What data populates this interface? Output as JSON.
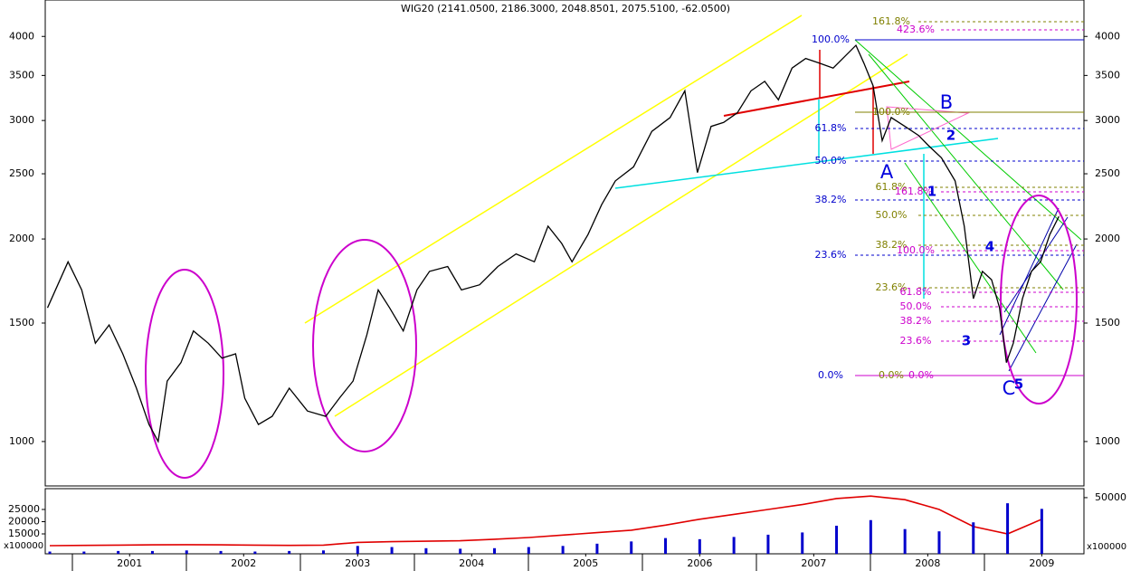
{
  "chart_data": [
    {
      "type": "line",
      "title": "WIG20 (2141.0500, 2186.3000, 2048.8501, 2075.5100, -62.0500)",
      "log_scale": true,
      "x": [
        2000.78,
        2000.96,
        2001.08,
        2001.2,
        2001.32,
        2001.44,
        2001.56,
        2001.67,
        2001.75,
        2001.83,
        2001.95,
        2002.06,
        2002.19,
        2002.31,
        2002.43,
        2002.51,
        2002.63,
        2002.75,
        2002.9,
        2003.06,
        2003.22,
        2003.34,
        2003.46,
        2003.58,
        2003.68,
        2003.78,
        2003.9,
        2004.02,
        2004.13,
        2004.29,
        2004.41,
        2004.57,
        2004.73,
        2004.89,
        2005.05,
        2005.17,
        2005.29,
        2005.38,
        2005.52,
        2005.64,
        2005.76,
        2005.92,
        2006.08,
        2006.24,
        2006.37,
        2006.48,
        2006.6,
        2006.71,
        2006.83,
        2006.95,
        2007.07,
        2007.19,
        2007.31,
        2007.43,
        2007.55,
        2007.67,
        2007.79,
        2007.87,
        2007.94,
        2008.02,
        2008.1,
        2008.18,
        2008.3,
        2008.42,
        2008.5,
        2008.62,
        2008.74,
        2008.82,
        2008.9,
        2008.98,
        2009.06,
        2009.13,
        2009.19,
        2009.25,
        2009.33,
        2009.41,
        2009.49,
        2009.57,
        2009.65
      ],
      "series": [
        {
          "color": "#000000",
          "values": [
            1580,
            1850,
            1680,
            1400,
            1490,
            1350,
            1200,
            1060,
            1000,
            1230,
            1310,
            1460,
            1400,
            1330,
            1350,
            1160,
            1060,
            1090,
            1200,
            1110,
            1090,
            1160,
            1230,
            1440,
            1680,
            1580,
            1460,
            1680,
            1790,
            1820,
            1680,
            1710,
            1820,
            1900,
            1850,
            2090,
            1970,
            1850,
            2030,
            2250,
            2440,
            2560,
            2890,
            3030,
            3320,
            2510,
            2940,
            2980,
            3080,
            3320,
            3430,
            3220,
            3590,
            3710,
            3650,
            3590,
            3760,
            3880,
            3650,
            3380,
            2800,
            3030,
            2940,
            2850,
            2760,
            2640,
            2440,
            2090,
            1630,
            1790,
            1740,
            1580,
            1310,
            1400,
            1630,
            1790,
            1850,
            2030,
            2160
          ]
        }
      ],
      "xlim": [
        2000.76,
        2009.87
      ],
      "ylim": [
        859,
        4531
      ],
      "yticks": [
        1000,
        1500,
        2000,
        2500,
        3000,
        3500,
        4000
      ],
      "xticks": [
        {
          "value": 2001.5,
          "label": "2001"
        },
        {
          "value": 2002.5,
          "label": "2002"
        },
        {
          "value": 2003.5,
          "label": "2003"
        },
        {
          "value": 2004.5,
          "label": "2004"
        },
        {
          "value": 2005.5,
          "label": "2005"
        },
        {
          "value": 2006.5,
          "label": "2006"
        },
        {
          "value": 2007.5,
          "label": "2007"
        },
        {
          "value": 2008.5,
          "label": "2008"
        },
        {
          "value": 2009.5,
          "label": "2009"
        }
      ],
      "annotations": [
        {
          "text": "100.0%",
          "color": "#0000cc"
        },
        {
          "text": "61.8%",
          "color": "#0000cc"
        },
        {
          "text": "50.0%",
          "color": "#0000cc"
        },
        {
          "text": "38.2%",
          "color": "#0000cc"
        },
        {
          "text": "23.6%",
          "color": "#0000cc"
        },
        {
          "text": "0.0%",
          "color": "#0000cc"
        },
        {
          "text": "161.8%",
          "color": "#808000"
        },
        {
          "text": "100.0%",
          "color": "#808000"
        },
        {
          "text": "61.8%",
          "color": "#808000"
        },
        {
          "text": "50.0%",
          "color": "#808000"
        },
        {
          "text": "38.2%",
          "color": "#808000"
        },
        {
          "text": "23.6%",
          "color": "#808000"
        },
        {
          "text": "0.0%",
          "color": "#808000"
        },
        {
          "text": "423.6%",
          "color": "#cc00cc"
        },
        {
          "text": "161.8%",
          "color": "#cc00cc"
        },
        {
          "text": "100.0%",
          "color": "#cc00cc"
        },
        {
          "text": "61.8%",
          "color": "#cc00cc"
        },
        {
          "text": "50.0%",
          "color": "#cc00cc"
        },
        {
          "text": "38.2%",
          "color": "#cc00cc"
        },
        {
          "text": "23.6%",
          "color": "#cc00cc"
        },
        {
          "text": "0.0%",
          "color": "#cc00cc"
        },
        {
          "text": "A",
          "color": "#0000dd"
        },
        {
          "text": "B",
          "color": "#0000dd"
        },
        {
          "text": "C",
          "color": "#0000dd"
        },
        {
          "text": "1",
          "color": "#0000dd"
        },
        {
          "text": "2",
          "color": "#0000dd"
        },
        {
          "text": "3",
          "color": "#0000dd"
        },
        {
          "text": "4",
          "color": "#0000dd"
        },
        {
          "text": "5",
          "color": "#0000dd"
        }
      ]
    },
    {
      "type": "combo",
      "unit_label": "x100000",
      "x": [
        2000.8,
        2001.1,
        2001.4,
        2001.7,
        2002.0,
        2002.3,
        2002.6,
        2002.9,
        2003.2,
        2003.5,
        2003.8,
        2004.1,
        2004.4,
        2004.7,
        2005.0,
        2005.3,
        2005.6,
        2005.9,
        2006.2,
        2006.5,
        2006.8,
        2007.1,
        2007.4,
        2007.7,
        2008.0,
        2008.3,
        2008.6,
        2008.9,
        2009.2,
        2009.5
      ],
      "series": [
        {
          "type": "line",
          "color": "#e00000",
          "values": [
            10200,
            10300,
            10400,
            10500,
            10600,
            10500,
            10400,
            10300,
            10400,
            11500,
            11800,
            12000,
            12200,
            12800,
            13500,
            14500,
            15500,
            16500,
            18600,
            21000,
            23000,
            25000,
            27000,
            29500,
            30500,
            29000,
            25000,
            18000,
            15000,
            21000
          ]
        },
        {
          "type": "bar",
          "axis": "y2",
          "color": "#0000cc",
          "values": [
            2000,
            2000,
            2500,
            2500,
            3000,
            2500,
            2000,
            2500,
            3000,
            7000,
            6000,
            5000,
            4500,
            5000,
            6000,
            7000,
            9000,
            11000,
            14000,
            13000,
            15000,
            17000,
            19000,
            25000,
            30000,
            22000,
            20000,
            28000,
            45000,
            40000
          ]
        }
      ],
      "ylim": [
        6850,
        33520
      ],
      "yticks": [
        15000,
        20000,
        25000
      ],
      "y2lim": [
        0,
        58000
      ],
      "y2ticks": [
        50000
      ]
    }
  ]
}
